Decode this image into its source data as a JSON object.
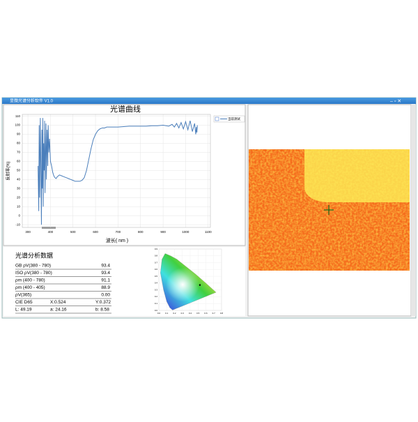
{
  "window": {
    "title": "显微光谱分析软件 V1.0"
  },
  "chart_data": {
    "type": "line",
    "title": "光谱曲线",
    "x_label": "波长( nm )",
    "y_label": "反射率(%)",
    "series": [
      {
        "name": "当前测试",
        "color": "#4a7ebb",
        "x": [
          345,
          348,
          350,
          352,
          355,
          357,
          360,
          362,
          364,
          366,
          368,
          370,
          372,
          374,
          376,
          378,
          380,
          382,
          385,
          388,
          390,
          393,
          396,
          400,
          405,
          410,
          415,
          420,
          425,
          430,
          440,
          450,
          460,
          470,
          480,
          490,
          500,
          510,
          520,
          530,
          540,
          550,
          560,
          570,
          580,
          590,
          600,
          610,
          620,
          630,
          640,
          650,
          675,
          700,
          725,
          750,
          775,
          800,
          825,
          850,
          875,
          900,
          925,
          940,
          950,
          960,
          970,
          980,
          990,
          1000,
          1010,
          1020,
          1030,
          1040,
          1045,
          1048,
          1050,
          1052
        ],
        "values": [
          55,
          5,
          100,
          20,
          108,
          60,
          -10,
          95,
          30,
          108,
          10,
          80,
          50,
          105,
          25,
          70,
          102,
          40,
          95,
          55,
          100,
          70,
          85,
          60,
          55,
          48,
          44,
          42,
          41,
          43,
          45,
          44,
          43,
          42,
          41,
          40,
          39,
          38,
          38,
          38,
          39,
          42,
          50,
          62,
          74,
          84,
          90,
          94,
          96,
          97,
          97,
          98,
          98,
          98,
          98.5,
          99,
          99,
          99,
          99,
          99.5,
          99.5,
          100,
          99,
          101,
          98,
          102,
          97,
          103,
          96,
          104,
          95,
          105,
          93,
          102,
          90,
          98,
          92,
          100
        ]
      }
    ],
    "xlim": [
      275,
      1110
    ],
    "ylim": [
      -13,
      112
    ],
    "xticks": [
      300,
      400,
      500,
      600,
      700,
      800,
      900,
      1000,
      1100
    ],
    "yticks": [
      -10,
      0,
      10,
      20,
      30,
      40,
      50,
      60,
      70,
      80,
      90,
      100,
      110
    ],
    "grid": true,
    "legend": "top-right"
  },
  "analysis": {
    "title": "光谱分析数据",
    "rows": [
      [
        "GB ρV(380 - 780)",
        "93.4"
      ],
      [
        "ISO ρV(380 - 780)",
        "93.4"
      ],
      [
        "ρm (400 - 780)",
        "91.1"
      ],
      [
        "ρm (400 - 405)",
        "88.9"
      ],
      [
        "ρV(365)",
        "0.00"
      ]
    ],
    "cie": [
      "CIE D65",
      "X:0.524",
      "Y:0.372"
    ],
    "lab": [
      "L: 49.19",
      "a: 24.16",
      "b: 8.58"
    ]
  },
  "cie_chart": {
    "point": {
      "x": 0.524,
      "y": 0.372
    },
    "xlim": [
      0,
      0.8
    ],
    "ylim": [
      0,
      0.9
    ],
    "xticks": [
      {
        "value": 0,
        "label": "0.0"
      },
      0.1,
      0.2,
      0.3,
      0.4,
      0.5,
      0.6,
      0.7,
      0.8
    ],
    "yticks": [
      {
        "value": 0,
        "label": "0.0"
      },
      0.1,
      0.2,
      0.3,
      0.4,
      0.5,
      0.6,
      0.7,
      0.8,
      0.9
    ]
  }
}
